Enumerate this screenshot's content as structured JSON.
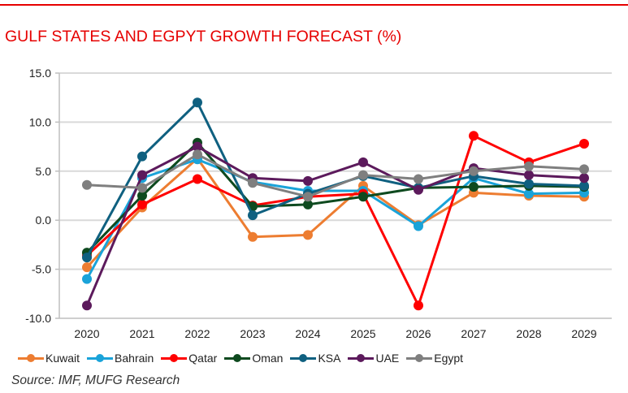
{
  "chart_data": {
    "type": "line",
    "title": "GULF STATES AND EGPYT GROWTH FORECAST (%)",
    "xlabel": "",
    "ylabel": "",
    "x": [
      "2020",
      "2021",
      "2022",
      "2023",
      "2024",
      "2025",
      "2026",
      "2027",
      "2028",
      "2029"
    ],
    "ylim": [
      -10.0,
      15.0
    ],
    "yticks": [
      "15.0",
      "10.0",
      "5.0",
      "0.0",
      "-5.0",
      "-10.0"
    ],
    "ytick_values": [
      15,
      10,
      5,
      0,
      -5,
      -10
    ],
    "grid": true,
    "legend_position": "bottom",
    "series": [
      {
        "name": "Kuwait",
        "color": "#ed7d31",
        "values": [
          -4.8,
          1.3,
          6.3,
          -1.7,
          -1.5,
          3.5,
          -0.5,
          2.8,
          2.5,
          2.4
        ]
      },
      {
        "name": "Bahrain",
        "color": "#1aa3d9",
        "values": [
          -6.0,
          4.3,
          6.2,
          3.9,
          3.0,
          3.0,
          -0.6,
          4.3,
          2.7,
          2.8
        ]
      },
      {
        "name": "Qatar",
        "color": "#ff0000",
        "values": [
          -3.6,
          1.6,
          4.2,
          1.5,
          2.4,
          2.7,
          -8.7,
          8.6,
          5.9,
          7.8
        ]
      },
      {
        "name": "Oman",
        "color": "#0e4a1f",
        "values": [
          -3.3,
          2.5,
          7.9,
          1.4,
          1.6,
          2.4,
          3.3,
          3.4,
          3.5,
          3.4
        ]
      },
      {
        "name": "KSA",
        "color": "#0f6080",
        "values": [
          -3.8,
          6.5,
          12.0,
          0.5,
          2.7,
          4.5,
          3.3,
          4.5,
          3.7,
          3.5
        ]
      },
      {
        "name": "UAE",
        "color": "#5c1a5c",
        "values": [
          -8.7,
          4.6,
          7.5,
          4.3,
          4.0,
          5.9,
          3.1,
          5.3,
          4.6,
          4.3
        ]
      },
      {
        "name": "Egypt",
        "color": "#7f7f7f",
        "values": [
          3.6,
          3.3,
          6.7,
          3.8,
          2.4,
          4.6,
          4.2,
          5.0,
          5.5,
          5.2
        ]
      }
    ]
  },
  "header": {
    "title": "GULF STATES AND EGPYT GROWTH FORECAST (%)"
  },
  "footer": {
    "source": "Source: IMF, MUFG Research"
  }
}
